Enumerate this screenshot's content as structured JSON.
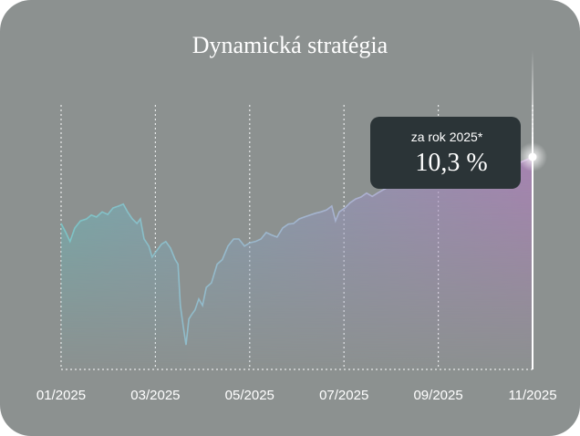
{
  "chart_data": {
    "type": "area",
    "title": "Dynamická stratégia",
    "annotation": {
      "caption": "za rok 2025*",
      "text": "10,3 %"
    },
    "xlim": [
      0,
      10
    ],
    "xticks": [
      {
        "value": 0,
        "label": "01/2025"
      },
      {
        "value": 2,
        "label": "03/2025"
      },
      {
        "value": 4,
        "label": "05/2025"
      },
      {
        "value": 6,
        "label": "07/2025"
      },
      {
        "value": 8,
        "label": "09/2025"
      },
      {
        "value": 10,
        "label": "11/2025"
      }
    ],
    "ylim": [
      -22.6,
      25
    ],
    "grid": true,
    "x": [
      0,
      0.1,
      0.19,
      0.29,
      0.41,
      0.54,
      0.64,
      0.75,
      0.87,
      0.99,
      1.1,
      1.22,
      1.32,
      1.41,
      1.51,
      1.61,
      1.68,
      1.76,
      1.86,
      1.93,
      2.03,
      2.13,
      2.22,
      2.32,
      2.42,
      2.48,
      2.53,
      2.59,
      2.65,
      2.71,
      2.77,
      2.84,
      2.92,
      3.0,
      3.08,
      3.19,
      3.31,
      3.42,
      3.54,
      3.66,
      3.77,
      3.89,
      4.0,
      4.12,
      4.24,
      4.35,
      4.47,
      4.58,
      4.7,
      4.82,
      4.93,
      5.05,
      5.16,
      5.28,
      5.4,
      5.51,
      5.63,
      5.74,
      5.82,
      5.9,
      6.02,
      6.13,
      6.25,
      6.36,
      6.48,
      6.6,
      6.71,
      6.83,
      6.94,
      7.06,
      7.21,
      7.41,
      7.6,
      7.79,
      7.99,
      8.18,
      8.38,
      8.57,
      8.76,
      8.96,
      9.15,
      9.34,
      9.54,
      9.73,
      9.88,
      10
    ],
    "values": [
      0,
      -1.4,
      -2.8,
      -0.7,
      0.4,
      0.7,
      1.3,
      1.0,
      1.8,
      1.4,
      2.4,
      2.7,
      3.0,
      1.8,
      0.7,
      0,
      0.7,
      -2.4,
      -3.5,
      -5.2,
      -4.2,
      -3.2,
      -2.8,
      -3.8,
      -5.6,
      -6.3,
      -12.7,
      -15.9,
      -18.8,
      -14.8,
      -14.1,
      -13.4,
      -11.7,
      -12.7,
      -9.9,
      -9.2,
      -6.3,
      -5.6,
      -3.5,
      -2.4,
      -2.4,
      -3.5,
      -3.0,
      -2.8,
      -2.4,
      -1.4,
      -1.8,
      -2.1,
      -0.7,
      -0.1,
      0,
      0.7,
      1.0,
      1.3,
      1.6,
      1.8,
      2.1,
      2.7,
      0.4,
      1.8,
      2.4,
      3.2,
      3.8,
      4.1,
      4.7,
      4.2,
      4.7,
      5.2,
      5.6,
      6.3,
      6.9,
      7.2,
      7.5,
      7.8,
      7.1,
      7.8,
      8.0,
      7.8,
      7.5,
      7.1,
      7.8,
      8.3,
      8.9,
      9.4,
      9.9,
      10.3
    ]
  }
}
